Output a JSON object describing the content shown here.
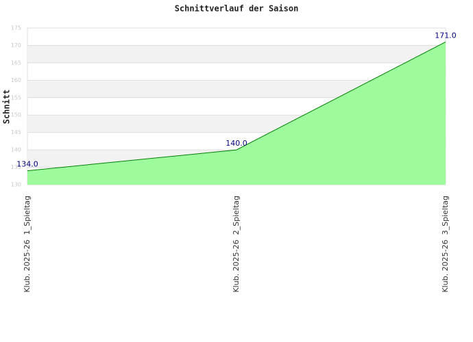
{
  "chart_data": {
    "type": "area",
    "title": "Schnittverlauf der Saison",
    "y_label": "Schnitt",
    "categories": [
      "Klub. 2025-26  1_Spieltag",
      "Klub. 2025-26  2_Spieltag",
      "Klub. 2025-26  3_Spieltag"
    ],
    "values": [
      134,
      140,
      171
    ],
    "value_labels": [
      "134.0",
      "140.0",
      "171.0"
    ],
    "color": "#008000",
    "fill": "#98fb98",
    "ylim": [
      130,
      175
    ],
    "yticks": [
      130,
      135,
      140,
      145,
      150,
      155,
      160,
      165,
      170,
      175
    ],
    "grid": true
  }
}
